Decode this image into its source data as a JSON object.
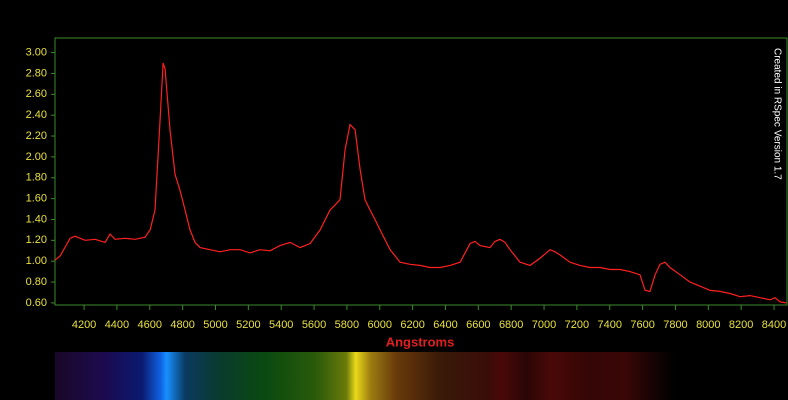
{
  "chart_data": {
    "type": "line",
    "x_label": "Angstroms",
    "annotation": "Created in RSpec Version 1.7",
    "color": "#ff2020",
    "xlim": [
      4023,
      8479
    ],
    "ylim": [
      0.58,
      3.14
    ],
    "xticks": [
      4200,
      4400,
      4600,
      4800,
      5000,
      5200,
      5400,
      5600,
      5800,
      6000,
      6200,
      6400,
      6600,
      6800,
      7000,
      7200,
      7400,
      7600,
      7800,
      8000,
      8200,
      8400
    ],
    "yticks": [
      {
        "value": 0.6,
        "label": "0.60"
      },
      {
        "value": 0.8,
        "label": "0.80"
      },
      {
        "value": 1,
        "label": "1.00"
      },
      {
        "value": 1.2,
        "label": "1.20"
      },
      {
        "value": 1.4,
        "label": "1.40"
      },
      {
        "value": 1.6,
        "label": "1.60"
      },
      {
        "value": 1.8,
        "label": "1.80"
      },
      {
        "value": 2,
        "label": "2.00"
      },
      {
        "value": 2.2,
        "label": "2.20"
      },
      {
        "value": 2.4,
        "label": "2.40"
      },
      {
        "value": 2.6,
        "label": "2.60"
      },
      {
        "value": 2.8,
        "label": "2.80"
      },
      {
        "value": 3,
        "label": "3.00"
      }
    ],
    "x": [
      4023,
      4054,
      4115,
      4145,
      4206,
      4267,
      4328,
      4358,
      4389,
      4450,
      4510,
      4571,
      4602,
      4632,
      4663,
      4681,
      4693,
      4723,
      4754,
      4784,
      4815,
      4845,
      4876,
      4906,
      4967,
      5028,
      5089,
      5150,
      5210,
      5271,
      5332,
      5393,
      5454,
      5515,
      5576,
      5637,
      5697,
      5728,
      5758,
      5789,
      5819,
      5850,
      5880,
      5910,
      5941,
      5971,
      6002,
      6063,
      6124,
      6184,
      6245,
      6306,
      6367,
      6428,
      6489,
      6550,
      6580,
      6611,
      6671,
      6702,
      6732,
      6763,
      6793,
      6854,
      6915,
      6976,
      7037,
      7067,
      7097,
      7158,
      7219,
      7280,
      7341,
      7402,
      7463,
      7523,
      7584,
      7615,
      7645,
      7676,
      7706,
      7737,
      7767,
      7828,
      7889,
      7950,
      8011,
      8071,
      8132,
      8193,
      8254,
      8315,
      8376,
      8406,
      8437,
      8475
    ],
    "values": [
      1.01,
      1.05,
      1.22,
      1.24,
      1.2,
      1.21,
      1.18,
      1.26,
      1.21,
      1.22,
      1.21,
      1.23,
      1.3,
      1.49,
      2.36,
      2.9,
      2.84,
      2.26,
      1.83,
      1.68,
      1.49,
      1.3,
      1.18,
      1.13,
      1.11,
      1.09,
      1.11,
      1.11,
      1.08,
      1.11,
      1.1,
      1.15,
      1.18,
      1.13,
      1.17,
      1.3,
      1.49,
      1.54,
      1.59,
      2.07,
      2.31,
      2.26,
      1.88,
      1.59,
      1.49,
      1.4,
      1.3,
      1.11,
      0.99,
      0.97,
      0.96,
      0.94,
      0.94,
      0.96,
      0.99,
      1.17,
      1.19,
      1.15,
      1.13,
      1.19,
      1.21,
      1.18,
      1.11,
      0.99,
      0.96,
      1.03,
      1.11,
      1.09,
      1.06,
      0.99,
      0.96,
      0.94,
      0.94,
      0.92,
      0.92,
      0.9,
      0.87,
      0.72,
      0.71,
      0.87,
      0.97,
      0.99,
      0.94,
      0.87,
      0.8,
      0.76,
      0.72,
      0.71,
      0.69,
      0.66,
      0.67,
      0.65,
      0.63,
      0.65,
      0.61,
      0.6
    ]
  }
}
